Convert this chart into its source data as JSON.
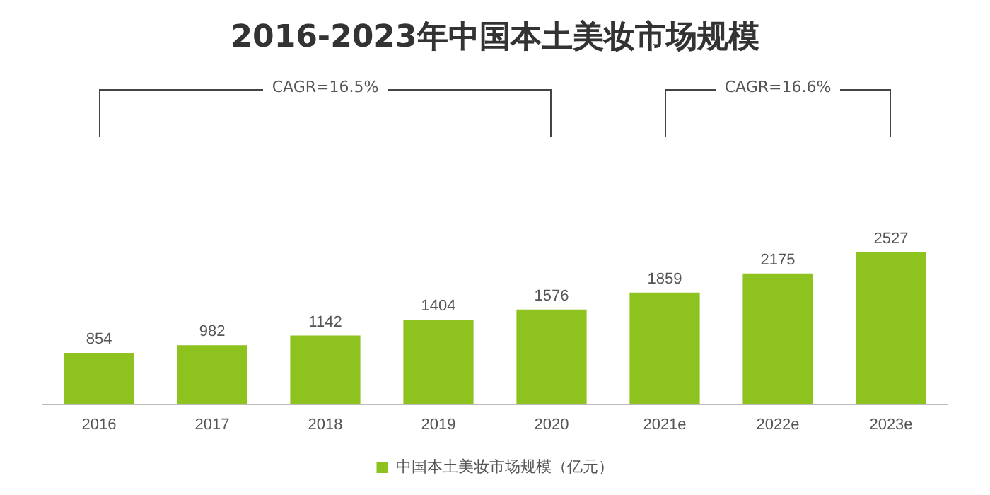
{
  "chart_data": {
    "type": "bar",
    "title": "2016-2023年中国本土美妆市场规模",
    "categories": [
      "2016",
      "2017",
      "2018",
      "2019",
      "2020",
      "2021e",
      "2022e",
      "2023e"
    ],
    "series": [
      {
        "name": "中国本土美妆市场规模（亿元）",
        "color": "#8dc21f",
        "values": [
          854,
          982,
          1142,
          1404,
          1576,
          1859,
          2175,
          2527
        ]
      }
    ],
    "data_labels": true,
    "legend": "bottom",
    "grid": false,
    "annotations": [
      "CAGR=16.5%",
      "CAGR=16.6%"
    ]
  }
}
